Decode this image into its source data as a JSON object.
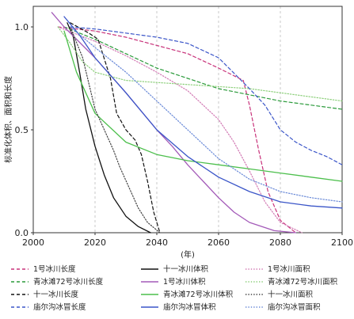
{
  "chart_data": {
    "type": "line",
    "xlabel": "(年)",
    "ylabel": "标准化体积、面积和长度",
    "xlim": [
      2000,
      2100
    ],
    "ylim": [
      0.0,
      1.1
    ],
    "xticks": [
      2000,
      2020,
      2040,
      2060,
      2080,
      2100
    ],
    "xtick_labels": [
      "2000",
      "2020",
      "2040",
      "2060",
      "2080",
      "2100"
    ],
    "yticks": [
      0.0,
      0.5,
      1.0
    ],
    "ytick_labels": [
      "0.0",
      "0.5",
      "1.0"
    ],
    "grid": "x-dashed",
    "legend_position": "bottom",
    "series": [
      {
        "name": "1号冰川长度",
        "color": "#c8327a",
        "dash": "dashed",
        "points": [
          [
            2008,
            1.0
          ],
          [
            2020,
            0.98
          ],
          [
            2030,
            0.95
          ],
          [
            2040,
            0.91
          ],
          [
            2050,
            0.87
          ],
          [
            2060,
            0.8
          ],
          [
            2068,
            0.74
          ],
          [
            2070,
            0.62
          ],
          [
            2073,
            0.4
          ],
          [
            2076,
            0.2
          ],
          [
            2080,
            0.06
          ],
          [
            2085,
            0.0
          ]
        ]
      },
      {
        "name": "十一冰川体积",
        "color": "#111111",
        "dash": "solid",
        "points": [
          [
            2011,
            1.02
          ],
          [
            2013,
            0.95
          ],
          [
            2015,
            0.78
          ],
          [
            2017,
            0.6
          ],
          [
            2020,
            0.42
          ],
          [
            2023,
            0.28
          ],
          [
            2026,
            0.17
          ],
          [
            2030,
            0.08
          ],
          [
            2034,
            0.03
          ],
          [
            2038,
            0.0
          ]
        ]
      },
      {
        "name": "1号冰川面积",
        "color": "#d27ab4",
        "dash": "dotted",
        "points": [
          [
            2008,
            1.0
          ],
          [
            2020,
            0.93
          ],
          [
            2030,
            0.86
          ],
          [
            2040,
            0.78
          ],
          [
            2050,
            0.69
          ],
          [
            2055,
            0.62
          ],
          [
            2060,
            0.55
          ],
          [
            2065,
            0.44
          ],
          [
            2070,
            0.3
          ],
          [
            2075,
            0.15
          ],
          [
            2080,
            0.05
          ],
          [
            2087,
            0.0
          ]
        ]
      },
      {
        "name": "青冰滩72号冰川长度",
        "color": "#2a9a3a",
        "dash": "dashed",
        "points": [
          [
            2010,
            1.0
          ],
          [
            2020,
            0.94
          ],
          [
            2030,
            0.87
          ],
          [
            2040,
            0.8
          ],
          [
            2050,
            0.75
          ],
          [
            2060,
            0.7
          ],
          [
            2070,
            0.67
          ],
          [
            2080,
            0.64
          ],
          [
            2090,
            0.62
          ],
          [
            2100,
            0.6
          ]
        ]
      },
      {
        "name": "1号冰川体积",
        "color": "#a35ab8",
        "dash": "solid",
        "points": [
          [
            2006,
            1.07
          ],
          [
            2010,
            1.0
          ],
          [
            2020,
            0.85
          ],
          [
            2030,
            0.68
          ],
          [
            2040,
            0.5
          ],
          [
            2045,
            0.42
          ],
          [
            2050,
            0.33
          ],
          [
            2055,
            0.25
          ],
          [
            2060,
            0.17
          ],
          [
            2065,
            0.1
          ],
          [
            2070,
            0.05
          ],
          [
            2078,
            0.01
          ],
          [
            2085,
            0.0
          ]
        ]
      },
      {
        "name": "青冰滩72号冰川面积",
        "color": "#8ccf7a",
        "dash": "dotted",
        "points": [
          [
            2008,
            1.0
          ],
          [
            2012,
            0.92
          ],
          [
            2016,
            0.83
          ],
          [
            2020,
            0.78
          ],
          [
            2030,
            0.74
          ],
          [
            2040,
            0.73
          ],
          [
            2050,
            0.72
          ],
          [
            2060,
            0.71
          ],
          [
            2070,
            0.7
          ],
          [
            2080,
            0.68
          ],
          [
            2090,
            0.66
          ],
          [
            2100,
            0.64
          ]
        ]
      },
      {
        "name": "十一冰川长度",
        "color": "#111111",
        "dash": "dashed",
        "points": [
          [
            2012,
            1.02
          ],
          [
            2018,
            0.97
          ],
          [
            2021,
            0.94
          ],
          [
            2025,
            0.75
          ],
          [
            2027,
            0.58
          ],
          [
            2030,
            0.5
          ],
          [
            2033,
            0.45
          ],
          [
            2035,
            0.38
          ],
          [
            2037,
            0.25
          ],
          [
            2039,
            0.1
          ],
          [
            2041,
            0.0
          ]
        ]
      },
      {
        "name": "青冰滩72号冰川体积",
        "color": "#4cbf4c",
        "dash": "solid",
        "points": [
          [
            2010,
            0.98
          ],
          [
            2014,
            0.78
          ],
          [
            2020,
            0.58
          ],
          [
            2030,
            0.44
          ],
          [
            2040,
            0.38
          ],
          [
            2050,
            0.35
          ],
          [
            2060,
            0.33
          ],
          [
            2070,
            0.31
          ],
          [
            2080,
            0.29
          ],
          [
            2090,
            0.27
          ],
          [
            2100,
            0.25
          ]
        ]
      },
      {
        "name": "十一冰川面积",
        "color": "#444444",
        "dash": "dotted",
        "points": [
          [
            2012,
            1.0
          ],
          [
            2016,
            0.85
          ],
          [
            2020,
            0.6
          ],
          [
            2023,
            0.5
          ],
          [
            2026,
            0.4
          ],
          [
            2028,
            0.32
          ],
          [
            2031,
            0.22
          ],
          [
            2034,
            0.12
          ],
          [
            2037,
            0.05
          ],
          [
            2041,
            0.0
          ]
        ]
      },
      {
        "name": "庙尔沟冰冒长度",
        "color": "#3a55c8",
        "dash": "dashed",
        "points": [
          [
            2012,
            1.0
          ],
          [
            2020,
            0.99
          ],
          [
            2030,
            0.97
          ],
          [
            2040,
            0.95
          ],
          [
            2050,
            0.92
          ],
          [
            2060,
            0.85
          ],
          [
            2066,
            0.76
          ],
          [
            2070,
            0.7
          ],
          [
            2075,
            0.62
          ],
          [
            2080,
            0.5
          ],
          [
            2085,
            0.44
          ],
          [
            2090,
            0.4
          ],
          [
            2095,
            0.37
          ],
          [
            2100,
            0.33
          ]
        ]
      },
      {
        "name": "庙尔沟冰冒体积",
        "color": "#3a55c8",
        "dash": "solid",
        "points": [
          [
            2010,
            1.05
          ],
          [
            2015,
            0.96
          ],
          [
            2020,
            0.85
          ],
          [
            2030,
            0.68
          ],
          [
            2040,
            0.5
          ],
          [
            2050,
            0.37
          ],
          [
            2060,
            0.27
          ],
          [
            2070,
            0.2
          ],
          [
            2080,
            0.15
          ],
          [
            2090,
            0.13
          ],
          [
            2100,
            0.12
          ]
        ]
      },
      {
        "name": "庙尔沟冰冒面积",
        "color": "#6a8ad8",
        "dash": "dotted",
        "points": [
          [
            2012,
            1.0
          ],
          [
            2020,
            0.9
          ],
          [
            2030,
            0.78
          ],
          [
            2040,
            0.64
          ],
          [
            2050,
            0.5
          ],
          [
            2060,
            0.36
          ],
          [
            2070,
            0.26
          ],
          [
            2080,
            0.2
          ],
          [
            2090,
            0.17
          ],
          [
            2100,
            0.15
          ]
        ]
      }
    ]
  }
}
